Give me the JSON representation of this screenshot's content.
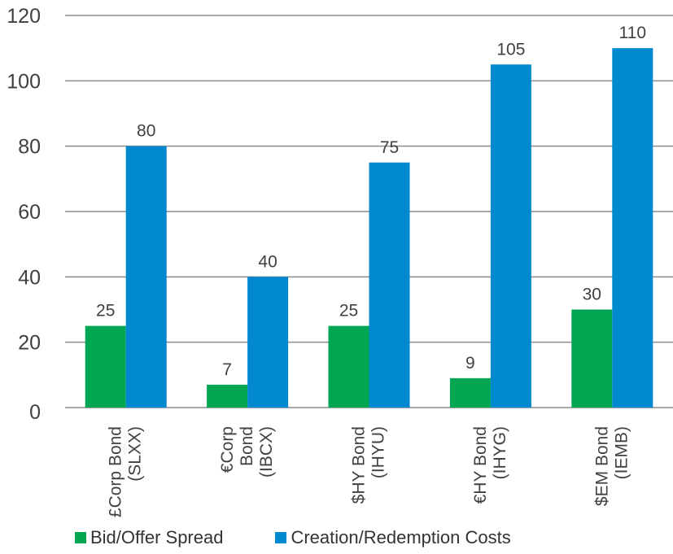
{
  "chart_data": {
    "type": "bar",
    "title": "",
    "xlabel": "",
    "ylabel": "",
    "ylim": [
      0,
      120
    ],
    "yticks": [
      "0",
      "20",
      "40",
      "60",
      "80",
      "100",
      "120"
    ],
    "grid": true,
    "legend_position": "bottom",
    "categories": [
      [
        "£Corp Bond",
        "(SLXX)"
      ],
      [
        "€Corp",
        "Bond",
        "(IBCX)"
      ],
      [
        "$HY Bond",
        "(IHYU)"
      ],
      [
        "€HY Bond",
        "(IHYG)"
      ],
      [
        "$EM Bond",
        "(IEMB)"
      ]
    ],
    "series": [
      {
        "name": "Bid/Offer Spread",
        "color": "#00A651",
        "values": [
          25,
          7,
          25,
          9,
          30
        ]
      },
      {
        "name": "Creation/Redemption Costs",
        "color": "#0089CF",
        "values": [
          80,
          40,
          75,
          105,
          110
        ]
      }
    ]
  }
}
